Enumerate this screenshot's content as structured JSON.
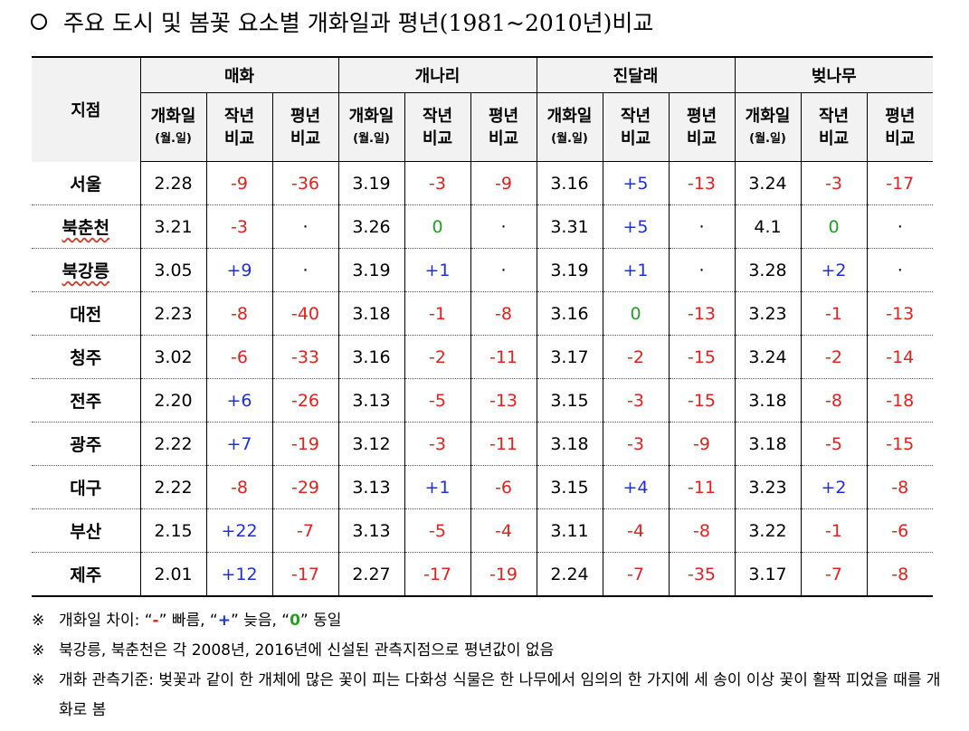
{
  "title": {
    "text": "주요 도시 및 봄꽃 요소별 개화일과 평년(1981~2010년)비교"
  },
  "table": {
    "corner": "지점",
    "groups": [
      "매화",
      "개나리",
      "진달래",
      "벚나무"
    ],
    "subheaders": [
      [
        "개화일",
        "(월.일)"
      ],
      [
        "작년",
        "비교"
      ],
      [
        "평년",
        "비교"
      ]
    ],
    "rows": [
      [
        "서울",
        "2.28",
        "-9",
        "-36",
        "3.19",
        "-3",
        "-9",
        "3.16",
        "+5",
        "-13",
        "3.24",
        "-3",
        "-17"
      ],
      [
        "북춘천",
        "3.21",
        "-3",
        "·",
        "3.26",
        "0",
        "·",
        "3.31",
        "+5",
        "·",
        "4.1",
        "0",
        "·"
      ],
      [
        "북강릉",
        "3.05",
        "+9",
        "·",
        "3.19",
        "+1",
        "·",
        "3.19",
        "+1",
        "·",
        "3.28",
        "+2",
        "·"
      ],
      [
        "대전",
        "2.23",
        "-8",
        "-40",
        "3.18",
        "-1",
        "-8",
        "3.16",
        "0",
        "-13",
        "3.23",
        "-1",
        "-13"
      ],
      [
        "청주",
        "3.02",
        "-6",
        "-33",
        "3.16",
        "-2",
        "-11",
        "3.17",
        "-2",
        "-15",
        "3.24",
        "-2",
        "-14"
      ],
      [
        "전주",
        "2.20",
        "+6",
        "-26",
        "3.13",
        "-5",
        "-13",
        "3.15",
        "-3",
        "-15",
        "3.18",
        "-8",
        "-18"
      ],
      [
        "광주",
        "2.22",
        "+7",
        "-19",
        "3.12",
        "-3",
        "-11",
        "3.18",
        "-3",
        "-9",
        "3.18",
        "-5",
        "-15"
      ],
      [
        "대구",
        "2.22",
        "-8",
        "-29",
        "3.13",
        "+1",
        "-6",
        "3.15",
        "+4",
        "-11",
        "3.23",
        "+2",
        "-8"
      ],
      [
        "부산",
        "2.15",
        "+22",
        "-7",
        "3.13",
        "-5",
        "-4",
        "3.11",
        "-4",
        "-8",
        "3.22",
        "-1",
        "-6"
      ],
      [
        "제주",
        "2.01",
        "+12",
        "-17",
        "2.27",
        "-17",
        "-19",
        "2.24",
        "-7",
        "-35",
        "3.17",
        "-7",
        "-8"
      ]
    ]
  },
  "notes": {
    "marker": "※",
    "items": [
      [
        "개화일 차이: “",
        "-",
        "” 빠름, “",
        "+",
        "” 늦음, “",
        "0",
        "” 동일"
      ],
      [
        "북강릉, 북춘천은 각 2008년, 2016년에 신설된 관측지점으로 평년값이 없음"
      ],
      [
        "개화 관측기준: 벚꽃과 같이 한 개체에 많은 꽃이 피는 다화성 식물은 한 나무에서 임의의 한 가지에 세 송이 이상 꽃이 활짝 피었을 때를 개화로 봄"
      ]
    ]
  }
}
